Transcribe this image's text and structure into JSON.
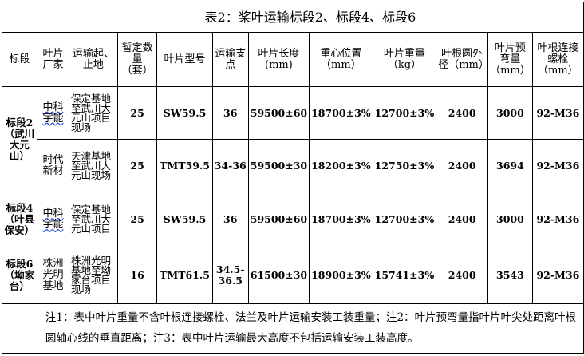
{
  "title": "表2：桨叶运输标段2、标段4、标段6",
  "headers": [
    "标段",
    "叶片厂家",
    "运输起、止地",
    "暂定数量（套）",
    "叶片型号",
    "运输支点",
    "叶片长度(mm)",
    "重心位置（mm）",
    "叶片重量（kg）",
    "叶根圆外径（mm）",
    "叶片预弯量（mm）",
    "叶根连接螺栓（mm）"
  ],
  "rows": [
    {
      "section": "标段2（武川大元山）",
      "maker": "中科宇能",
      "route": "保定基地至武川大元山项目现场",
      "qty": "25",
      "model": "SW59.5",
      "support": "36",
      "length": "59500±60",
      "cog": "18700±3%",
      "weight": "12700±3%",
      "root": "2400",
      "prebend": "3000",
      "bolt": "92-M36"
    },
    {
      "section": "",
      "maker": "时代新材",
      "route": "天津基地至武川大元山现场",
      "qty": "25",
      "model": "TMT59.5",
      "support": "34-36",
      "length": "59500±30",
      "cog": "18200±3%",
      "weight": "12750±3%",
      "root": "2400",
      "prebend": "3694",
      "bolt": "92-M36"
    },
    {
      "section": "标段4（叶县保安）",
      "maker": "中科宇能",
      "route": "保定基地至武川大元山项目",
      "qty": "25",
      "model": "SW59.5",
      "support": "36",
      "length": "59500±60",
      "cog": "18700±3%",
      "weight": "12700±3%",
      "root": "2400",
      "prebend": "3000",
      "bolt": "92-M36"
    },
    {
      "section": "标段6（坳家台）",
      "maker": "株洲光明基地",
      "route": "株洲光明基地至坳家台项目现场",
      "qty": "16",
      "model": "TMT61.5",
      "support": "34.5-36.5",
      "length": "61500±30",
      "cog": "18900±3%",
      "weight": "15741±3%",
      "root": "2400",
      "prebend": "3543",
      "bolt": "92-M36"
    }
  ],
  "note": "注1：表中叶片重量不含叶根连接螺栓、法兰及叶片运输安装工装重量；注2：叶片预弯量指叶片叶尖处距离叶根圆轴心线的垂直距离；注3：表中叶片运输最大高度不包括运输安装工装高度。"
}
